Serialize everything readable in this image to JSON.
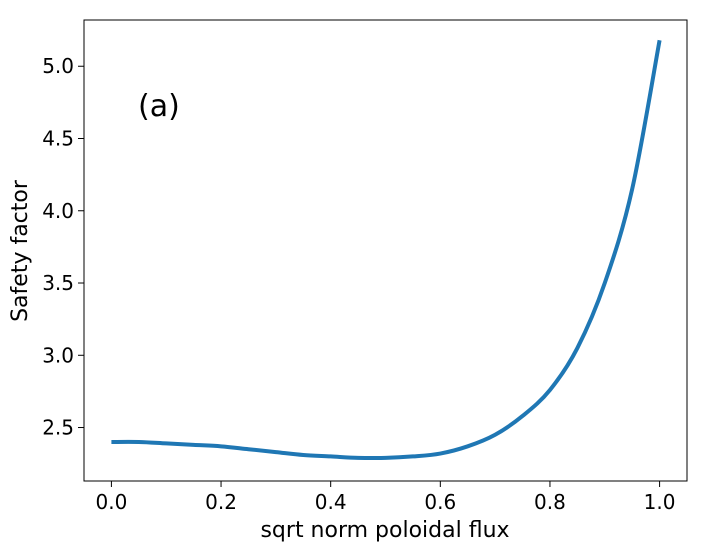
{
  "chart_data": {
    "type": "line",
    "xlabel": "sqrt norm poloidal flux",
    "ylabel": "Safety  factor",
    "annotation": "(a)",
    "xlim": [
      -0.05,
      1.05
    ],
    "ylim": [
      2.13,
      5.32
    ],
    "xticks": [
      0.0,
      0.2,
      0.4,
      0.6,
      0.8,
      1.0
    ],
    "xtick_labels": [
      "0.0",
      "0.2",
      "0.4",
      "0.6",
      "0.8",
      "1.0"
    ],
    "yticks": [
      2.5,
      3.0,
      3.5,
      4.0,
      4.5,
      5.0
    ],
    "ytick_labels": [
      "2.5",
      "3.0",
      "3.5",
      "4.0",
      "4.5",
      "5.0"
    ],
    "grid": false,
    "line_color": "#1f77b4",
    "series": [
      {
        "x": [
          0.0,
          0.05,
          0.1,
          0.15,
          0.2,
          0.25,
          0.3,
          0.35,
          0.4,
          0.45,
          0.5,
          0.55,
          0.6,
          0.65,
          0.7,
          0.75,
          0.8,
          0.85,
          0.9,
          0.95,
          1.0
        ],
        "values": [
          2.4,
          2.4,
          2.39,
          2.38,
          2.37,
          2.35,
          2.33,
          2.31,
          2.3,
          2.29,
          2.29,
          2.3,
          2.32,
          2.37,
          2.45,
          2.58,
          2.76,
          3.05,
          3.5,
          4.15,
          5.18
        ]
      }
    ]
  }
}
